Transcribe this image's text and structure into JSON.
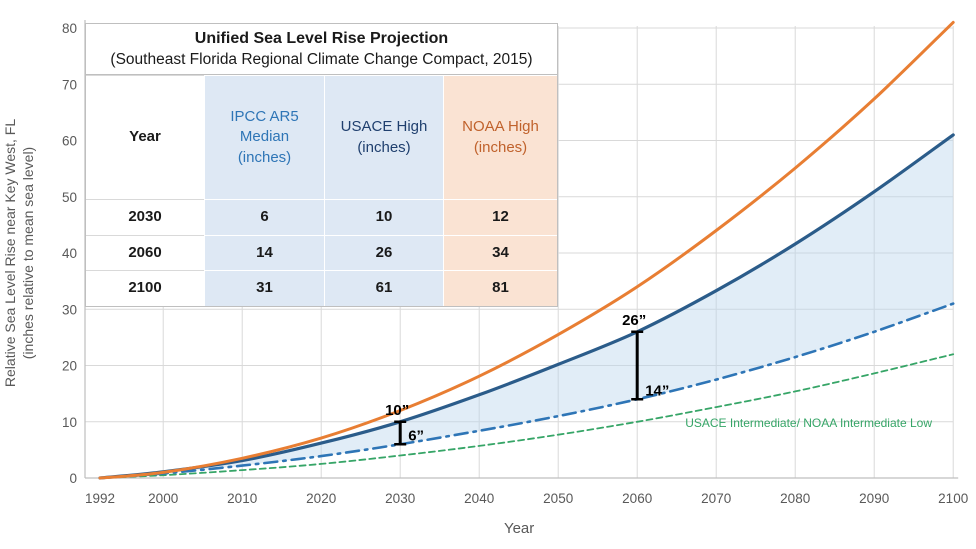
{
  "table": {
    "title": "Unified Sea Level Rise Projection",
    "subtitle": "(Southeast Florida Regional Climate Change Compact, 2015)",
    "columns": [
      {
        "label": "Year",
        "tint": "none",
        "hdr_class": "hdr-year"
      },
      {
        "label": "IPCC AR5\nMedian\n(inches)",
        "tint": "blue",
        "hdr_class": "hdr-ipcc"
      },
      {
        "label": "USACE High\n(inches)",
        "tint": "blue",
        "hdr_class": "hdr-usace"
      },
      {
        "label": "NOAA High\n(inches)",
        "tint": "orange",
        "hdr_class": "hdr-noaa"
      }
    ],
    "rows": [
      {
        "year": "2030",
        "values": [
          "6",
          "10",
          "12"
        ]
      },
      {
        "year": "2060",
        "values": [
          "14",
          "26",
          "34"
        ]
      },
      {
        "year": "2100",
        "values": [
          "31",
          "61",
          "81"
        ]
      }
    ]
  },
  "chart_data": {
    "type": "line",
    "title": "Unified Sea Level Rise Projection",
    "xlabel": "Year",
    "ylabel": "Relative Sea Level Rise near Key West, FL\n(inches relative to mean sea level)",
    "xlim": [
      1992,
      2100
    ],
    "ylim": [
      0,
      80
    ],
    "grid": true,
    "x_ticks": [
      1992,
      2000,
      2010,
      2020,
      2030,
      2040,
      2050,
      2060,
      2070,
      2080,
      2090,
      2100
    ],
    "y_ticks": [
      0,
      10,
      20,
      30,
      40,
      50,
      60,
      70,
      80
    ],
    "x": [
      1992,
      2000,
      2010,
      2020,
      2030,
      2040,
      2050,
      2060,
      2070,
      2080,
      2090,
      2100
    ],
    "series": [
      {
        "name": "NOAA High",
        "color": "#e87e33",
        "style": "solid",
        "width": 3,
        "values": [
          0,
          1.0,
          3.5,
          7.1,
          12,
          18.1,
          25.5,
          34,
          44,
          55.1,
          67.4,
          81
        ]
      },
      {
        "name": "USACE High",
        "color": "#2b5c8a",
        "style": "solid",
        "width": 3.2,
        "values": [
          0,
          1.1,
          3.1,
          6.2,
          10,
          14.8,
          20.2,
          26,
          33.3,
          41.6,
          50.9,
          61
        ]
      },
      {
        "name": "IPCC AR5 Median",
        "color": "#2e75b6",
        "style": "dashdot",
        "width": 2.6,
        "values": [
          0,
          0.8,
          2.2,
          3.9,
          6,
          8.4,
          11,
          14,
          17.5,
          21.5,
          26,
          31
        ]
      },
      {
        "name": "USACE Intermediate/ NOAA Intermediate Low",
        "color": "#36a567",
        "style": "dashed",
        "width": 1.8,
        "values": [
          0,
          0.5,
          1.4,
          2.5,
          4,
          5.7,
          7.7,
          10,
          12.6,
          15.4,
          18.6,
          22
        ]
      }
    ],
    "shaded_band": {
      "upper": "USACE High",
      "lower": "IPCC AR5 Median",
      "color": "#bdd7ee",
      "opacity": 0.45
    },
    "annotations": [
      {
        "year": 2030,
        "low": 6,
        "high": 10,
        "low_label": "6”",
        "high_label": "10”"
      },
      {
        "year": 2060,
        "low": 14,
        "high": 26,
        "low_label": "14”",
        "high_label": "26”"
      }
    ],
    "inline_label": {
      "text": "USACE Intermediate/ NOAA Intermediate Low",
      "color": "#36a567"
    },
    "legend_position": "inline",
    "colors": {
      "axis": "#bfbfbf",
      "grid": "#d9d9d9",
      "tick_text": "#595959",
      "annotation": "#000000"
    }
  }
}
